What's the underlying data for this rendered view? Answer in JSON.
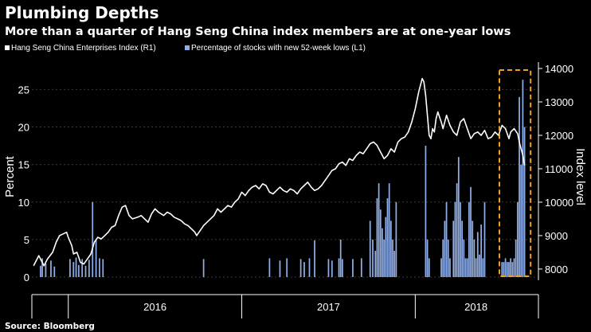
{
  "chart_data": {
    "type": "bar+line",
    "title": "Plumbing Depths",
    "subtitle": "More than a quarter of Hang Seng China index members are at one-year lows",
    "legend": [
      {
        "label": "Hang Seng China Enterprises Index (R1)",
        "color": "#ffffff"
      },
      {
        "label": "Percentage of stocks with new 52-week lows (L1)",
        "color": "#8faee8"
      }
    ],
    "legend_position": "top-left",
    "left_axis": {
      "label": "Percent",
      "lim": [
        0,
        27.8
      ],
      "ticks": [
        0,
        5,
        10,
        15,
        20,
        25
      ]
    },
    "right_axis": {
      "label": "Index level",
      "lim": [
        7760,
        14000
      ],
      "ticks": [
        8000,
        9000,
        10000,
        11000,
        12000,
        13000,
        14000
      ]
    },
    "x_axis": {
      "lim": [
        2015.79,
        2018.71
      ],
      "period_labels": [
        {
          "label": "2016",
          "x": 2016.5
        },
        {
          "label": "2017",
          "x": 2017.5
        },
        {
          "label": "2018",
          "x": 2018.35
        }
      ],
      "period_boundaries": [
        2016,
        2017,
        2018
      ]
    },
    "highlight": {
      "x_range": [
        2018.485,
        2018.665
      ],
      "color": "#f0a020"
    },
    "source": "Source: Bloomberg",
    "colors": {
      "background": "#000000",
      "index_line": "#ffffff",
      "bars": "#8faee8",
      "highlight": "#f0a020",
      "text": "#ffffff",
      "grid": "#3a3a3a"
    },
    "bars_percent": [
      {
        "x": 2015.84,
        "v": 1.5
      },
      {
        "x": 2015.85,
        "v": 2.5
      },
      {
        "x": 2015.87,
        "v": 1.8
      },
      {
        "x": 2015.9,
        "v": 2.2
      },
      {
        "x": 2015.92,
        "v": 1.4
      },
      {
        "x": 2016.01,
        "v": 2.4
      },
      {
        "x": 2016.03,
        "v": 2.0
      },
      {
        "x": 2016.045,
        "v": 2.6
      },
      {
        "x": 2016.06,
        "v": 1.6
      },
      {
        "x": 2016.08,
        "v": 2.4
      },
      {
        "x": 2016.1,
        "v": 1.5
      },
      {
        "x": 2016.12,
        "v": 2.3
      },
      {
        "x": 2016.14,
        "v": 10.0
      },
      {
        "x": 2016.16,
        "v": 5.0
      },
      {
        "x": 2016.18,
        "v": 2.5
      },
      {
        "x": 2016.2,
        "v": 2.4
      },
      {
        "x": 2016.78,
        "v": 2.4
      },
      {
        "x": 2017.16,
        "v": 2.5
      },
      {
        "x": 2017.22,
        "v": 2.2
      },
      {
        "x": 2017.26,
        "v": 2.5
      },
      {
        "x": 2017.34,
        "v": 2.4
      },
      {
        "x": 2017.36,
        "v": 2.0
      },
      {
        "x": 2017.39,
        "v": 2.5
      },
      {
        "x": 2017.42,
        "v": 4.9
      },
      {
        "x": 2017.5,
        "v": 2.4
      },
      {
        "x": 2017.52,
        "v": 2.2
      },
      {
        "x": 2017.56,
        "v": 2.5
      },
      {
        "x": 2017.57,
        "v": 5.0
      },
      {
        "x": 2017.58,
        "v": 2.4
      },
      {
        "x": 2017.64,
        "v": 2.4
      },
      {
        "x": 2017.69,
        "v": 2.5
      },
      {
        "x": 2017.74,
        "v": 7.5
      },
      {
        "x": 2017.755,
        "v": 5.0
      },
      {
        "x": 2017.77,
        "v": 3.5
      },
      {
        "x": 2017.78,
        "v": 10.5
      },
      {
        "x": 2017.79,
        "v": 12.5
      },
      {
        "x": 2017.8,
        "v": 9.0
      },
      {
        "x": 2017.81,
        "v": 6.5
      },
      {
        "x": 2017.82,
        "v": 5.0
      },
      {
        "x": 2017.83,
        "v": 8.0
      },
      {
        "x": 2017.84,
        "v": 10.5
      },
      {
        "x": 2017.85,
        "v": 12.5
      },
      {
        "x": 2017.86,
        "v": 7.5
      },
      {
        "x": 2017.87,
        "v": 5.0
      },
      {
        "x": 2017.88,
        "v": 3.5
      },
      {
        "x": 2017.89,
        "v": 10.0
      },
      {
        "x": 2018.06,
        "v": 17.5
      },
      {
        "x": 2018.07,
        "v": 5.0
      },
      {
        "x": 2018.08,
        "v": 2.5
      },
      {
        "x": 2018.15,
        "v": 2.5
      },
      {
        "x": 2018.16,
        "v": 5.0
      },
      {
        "x": 2018.17,
        "v": 7.5
      },
      {
        "x": 2018.18,
        "v": 10.0
      },
      {
        "x": 2018.19,
        "v": 5.0
      },
      {
        "x": 2018.2,
        "v": 2.5
      },
      {
        "x": 2018.22,
        "v": 7.5
      },
      {
        "x": 2018.23,
        "v": 10.0
      },
      {
        "x": 2018.24,
        "v": 12.5
      },
      {
        "x": 2018.25,
        "v": 16.0
      },
      {
        "x": 2018.26,
        "v": 10.0
      },
      {
        "x": 2018.27,
        "v": 7.5
      },
      {
        "x": 2018.28,
        "v": 5.0
      },
      {
        "x": 2018.29,
        "v": 2.5
      },
      {
        "x": 2018.3,
        "v": 2.5
      },
      {
        "x": 2018.31,
        "v": 10.0
      },
      {
        "x": 2018.32,
        "v": 12.0
      },
      {
        "x": 2018.33,
        "v": 7.5
      },
      {
        "x": 2018.34,
        "v": 5.0
      },
      {
        "x": 2018.35,
        "v": 2.5
      },
      {
        "x": 2018.36,
        "v": 6.0
      },
      {
        "x": 2018.37,
        "v": 3.0
      },
      {
        "x": 2018.38,
        "v": 7.0
      },
      {
        "x": 2018.39,
        "v": 2.5
      },
      {
        "x": 2018.4,
        "v": 10.0
      },
      {
        "x": 2018.5,
        "v": 2.0
      },
      {
        "x": 2018.51,
        "v": 2.0
      },
      {
        "x": 2018.52,
        "v": 2.5
      },
      {
        "x": 2018.53,
        "v": 2.0
      },
      {
        "x": 2018.54,
        "v": 2.0
      },
      {
        "x": 2018.55,
        "v": 2.5
      },
      {
        "x": 2018.56,
        "v": 2.0
      },
      {
        "x": 2018.57,
        "v": 2.5
      },
      {
        "x": 2018.58,
        "v": 5.0
      },
      {
        "x": 2018.59,
        "v": 10.0
      },
      {
        "x": 2018.6,
        "v": 24.0
      },
      {
        "x": 2018.61,
        "v": 15.0
      },
      {
        "x": 2018.62,
        "v": 26.3
      },
      {
        "x": 2018.63,
        "v": 20.0
      }
    ],
    "index_line": [
      [
        2015.8,
        8100
      ],
      [
        2015.83,
        8400
      ],
      [
        2015.86,
        8100
      ],
      [
        2015.88,
        8300
      ],
      [
        2015.91,
        8500
      ],
      [
        2015.93,
        8800
      ],
      [
        2015.95,
        9000
      ],
      [
        2015.97,
        9050
      ],
      [
        2015.99,
        9100
      ],
      [
        2016.0,
        8950
      ],
      [
        2016.02,
        8700
      ],
      [
        2016.03,
        8450
      ],
      [
        2016.05,
        8500
      ],
      [
        2016.07,
        8200
      ],
      [
        2016.09,
        8150
      ],
      [
        2016.11,
        8300
      ],
      [
        2016.13,
        8450
      ],
      [
        2016.15,
        8800
      ],
      [
        2016.17,
        8950
      ],
      [
        2016.19,
        8900
      ],
      [
        2016.21,
        9000
      ],
      [
        2016.23,
        9100
      ],
      [
        2016.25,
        9250
      ],
      [
        2016.27,
        9300
      ],
      [
        2016.29,
        9600
      ],
      [
        2016.31,
        9850
      ],
      [
        2016.33,
        9900
      ],
      [
        2016.35,
        9600
      ],
      [
        2016.37,
        9500
      ],
      [
        2016.4,
        9550
      ],
      [
        2016.42,
        9600
      ],
      [
        2016.44,
        9500
      ],
      [
        2016.46,
        9400
      ],
      [
        2016.48,
        9650
      ],
      [
        2016.5,
        9800
      ],
      [
        2016.52,
        9700
      ],
      [
        2016.55,
        9600
      ],
      [
        2016.57,
        9700
      ],
      [
        2016.59,
        9650
      ],
      [
        2016.61,
        9550
      ],
      [
        2016.63,
        9500
      ],
      [
        2016.65,
        9450
      ],
      [
        2016.67,
        9350
      ],
      [
        2016.69,
        9300
      ],
      [
        2016.71,
        9200
      ],
      [
        2016.73,
        9100
      ],
      [
        2016.74,
        9000
      ],
      [
        2016.76,
        9150
      ],
      [
        2016.78,
        9300
      ],
      [
        2016.8,
        9400
      ],
      [
        2016.82,
        9500
      ],
      [
        2016.84,
        9600
      ],
      [
        2016.86,
        9800
      ],
      [
        2016.88,
        9700
      ],
      [
        2016.9,
        9800
      ],
      [
        2016.92,
        9900
      ],
      [
        2016.94,
        9850
      ],
      [
        2016.96,
        10000
      ],
      [
        2016.98,
        10100
      ],
      [
        2017.0,
        10300
      ],
      [
        2017.02,
        10200
      ],
      [
        2017.04,
        10350
      ],
      [
        2017.06,
        10450
      ],
      [
        2017.08,
        10500
      ],
      [
        2017.1,
        10400
      ],
      [
        2017.12,
        10550
      ],
      [
        2017.14,
        10500
      ],
      [
        2017.16,
        10300
      ],
      [
        2017.18,
        10250
      ],
      [
        2017.2,
        10350
      ],
      [
        2017.22,
        10450
      ],
      [
        2017.24,
        10350
      ],
      [
        2017.26,
        10300
      ],
      [
        2017.28,
        10400
      ],
      [
        2017.3,
        10350
      ],
      [
        2017.32,
        10250
      ],
      [
        2017.34,
        10400
      ],
      [
        2017.36,
        10500
      ],
      [
        2017.38,
        10600
      ],
      [
        2017.4,
        10450
      ],
      [
        2017.42,
        10350
      ],
      [
        2017.44,
        10400
      ],
      [
        2017.46,
        10500
      ],
      [
        2017.48,
        10650
      ],
      [
        2017.5,
        10800
      ],
      [
        2017.52,
        10950
      ],
      [
        2017.54,
        11000
      ],
      [
        2017.56,
        11150
      ],
      [
        2017.58,
        11200
      ],
      [
        2017.6,
        11100
      ],
      [
        2017.62,
        11300
      ],
      [
        2017.64,
        11250
      ],
      [
        2017.66,
        11400
      ],
      [
        2017.68,
        11500
      ],
      [
        2017.7,
        11450
      ],
      [
        2017.72,
        11600
      ],
      [
        2017.74,
        11750
      ],
      [
        2017.76,
        11800
      ],
      [
        2017.78,
        11700
      ],
      [
        2017.8,
        11500
      ],
      [
        2017.82,
        11300
      ],
      [
        2017.84,
        11400
      ],
      [
        2017.86,
        11600
      ],
      [
        2017.88,
        11500
      ],
      [
        2017.9,
        11800
      ],
      [
        2017.92,
        11900
      ],
      [
        2017.94,
        11950
      ],
      [
        2017.96,
        12100
      ],
      [
        2017.98,
        12400
      ],
      [
        2018.0,
        12800
      ],
      [
        2018.02,
        13300
      ],
      [
        2018.04,
        13700
      ],
      [
        2018.05,
        13600
      ],
      [
        2018.06,
        13200
      ],
      [
        2018.07,
        12600
      ],
      [
        2018.08,
        12000
      ],
      [
        2018.09,
        11900
      ],
      [
        2018.1,
        12200
      ],
      [
        2018.11,
        12100
      ],
      [
        2018.12,
        12500
      ],
      [
        2018.13,
        12700
      ],
      [
        2018.15,
        12400
      ],
      [
        2018.16,
        12200
      ],
      [
        2018.18,
        12600
      ],
      [
        2018.2,
        12300
      ],
      [
        2018.22,
        12100
      ],
      [
        2018.24,
        12000
      ],
      [
        2018.26,
        12400
      ],
      [
        2018.28,
        12500
      ],
      [
        2018.3,
        12200
      ],
      [
        2018.32,
        11900
      ],
      [
        2018.34,
        12050
      ],
      [
        2018.36,
        12100
      ],
      [
        2018.38,
        12000
      ],
      [
        2018.4,
        12150
      ],
      [
        2018.42,
        11900
      ],
      [
        2018.44,
        11950
      ],
      [
        2018.46,
        12100
      ],
      [
        2018.48,
        12000
      ],
      [
        2018.5,
        12300
      ],
      [
        2018.52,
        12200
      ],
      [
        2018.54,
        11900
      ],
      [
        2018.55,
        12100
      ],
      [
        2018.57,
        12200
      ],
      [
        2018.59,
        12050
      ],
      [
        2018.6,
        11800
      ],
      [
        2018.61,
        11600
      ],
      [
        2018.62,
        11400
      ],
      [
        2018.63,
        11100
      ]
    ]
  }
}
